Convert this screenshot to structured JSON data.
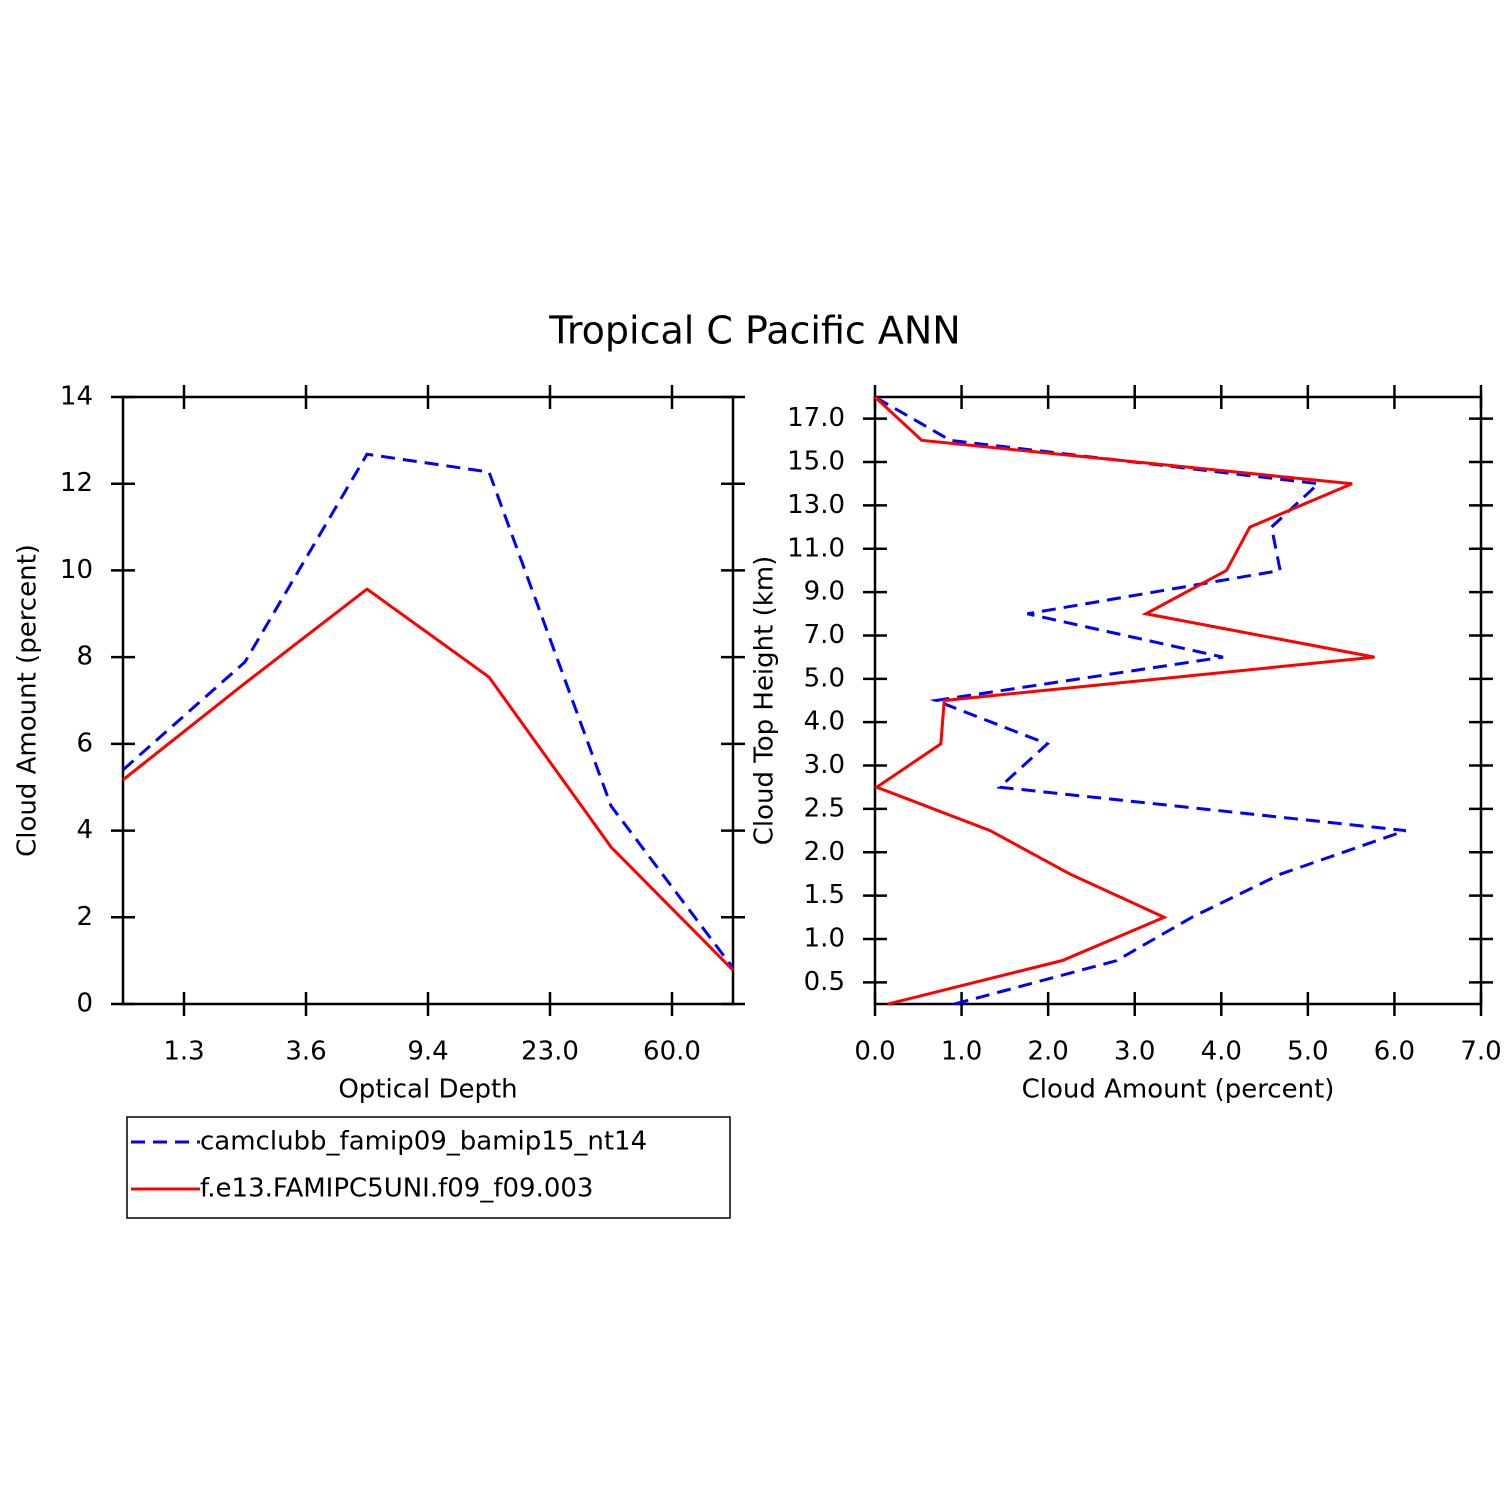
{
  "title": "Tropical C Pacific ANN",
  "chart_data": [
    {
      "type": "line",
      "orientation": "vertical",
      "xlabel": "Optical Depth",
      "ylabel": "Cloud Amount (percent)",
      "x": [
        0,
        1,
        2,
        3,
        4,
        5
      ],
      "xlim": [
        0,
        5
      ],
      "xticks": [
        {
          "value": 0.5,
          "label": "1.3"
        },
        {
          "value": 1.5,
          "label": "3.6"
        },
        {
          "value": 2.5,
          "label": "9.4"
        },
        {
          "value": 3.5,
          "label": "23.0"
        },
        {
          "value": 4.5,
          "label": "60.0"
        }
      ],
      "ylim": [
        0,
        14
      ],
      "yticks": [
        0,
        2,
        4,
        6,
        8,
        10,
        12,
        14
      ],
      "legend": "below",
      "series": [
        {
          "name": "camclubb_famip09_bamip15_nt14",
          "color": "#0000ff",
          "style": "dashed",
          "values": [
            5.4,
            7.89,
            12.68,
            12.27,
            4.57,
            0.83
          ]
        },
        {
          "name": "f.e13.FAMIPC5UNI.f09_f09.003",
          "color": "#ff0000",
          "style": "solid",
          "values": [
            5.17,
            7.4,
            9.57,
            7.54,
            3.62,
            0.78
          ]
        }
      ]
    },
    {
      "type": "line",
      "orientation": "horizontal",
      "xlabel": "Cloud Amount (percent)",
      "ylabel": "Cloud Top Height (km)",
      "y": [
        0,
        1,
        2,
        3,
        4,
        5,
        6,
        7,
        8,
        9,
        10,
        11,
        12,
        13,
        14
      ],
      "xlim": [
        0,
        7
      ],
      "xticks": [
        {
          "value": 0,
          "label": "0.0"
        },
        {
          "value": 1,
          "label": "1.0"
        },
        {
          "value": 2,
          "label": "2.0"
        },
        {
          "value": 3,
          "label": "3.0"
        },
        {
          "value": 4,
          "label": "4.0"
        },
        {
          "value": 5,
          "label": "5.0"
        },
        {
          "value": 6,
          "label": "6.0"
        },
        {
          "value": 7,
          "label": "7.0"
        }
      ],
      "ylim": [
        0,
        14
      ],
      "yticks": [
        {
          "value": 0.5,
          "label": "0.5"
        },
        {
          "value": 1.5,
          "label": "1.0"
        },
        {
          "value": 2.5,
          "label": "1.5"
        },
        {
          "value": 3.5,
          "label": "2.0"
        },
        {
          "value": 4.5,
          "label": "2.5"
        },
        {
          "value": 5.5,
          "label": "3.0"
        },
        {
          "value": 6.5,
          "label": "4.0"
        },
        {
          "value": 7.5,
          "label": "5.0"
        },
        {
          "value": 8.5,
          "label": "7.0"
        },
        {
          "value": 9.5,
          "label": "9.0"
        },
        {
          "value": 10.5,
          "label": "11.0"
        },
        {
          "value": 11.5,
          "label": "13.0"
        },
        {
          "value": 12.5,
          "label": "15.0"
        },
        {
          "value": 13.5,
          "label": "17.0"
        }
      ],
      "series": [
        {
          "color": "#0000ff",
          "style": "dashed",
          "values": [
            0.92,
            2.79,
            3.66,
            4.69,
            6.13,
            1.44,
            1.99,
            0.7,
            4.02,
            1.76,
            4.68,
            4.58,
            5.12,
            0.87,
            0.0
          ]
        },
        {
          "color": "#ff0000",
          "style": "solid",
          "values": [
            0.15,
            2.16,
            3.34,
            2.25,
            1.33,
            0.02,
            0.76,
            0.8,
            5.77,
            3.13,
            4.06,
            4.33,
            5.51,
            0.54,
            0.0
          ]
        }
      ]
    }
  ]
}
